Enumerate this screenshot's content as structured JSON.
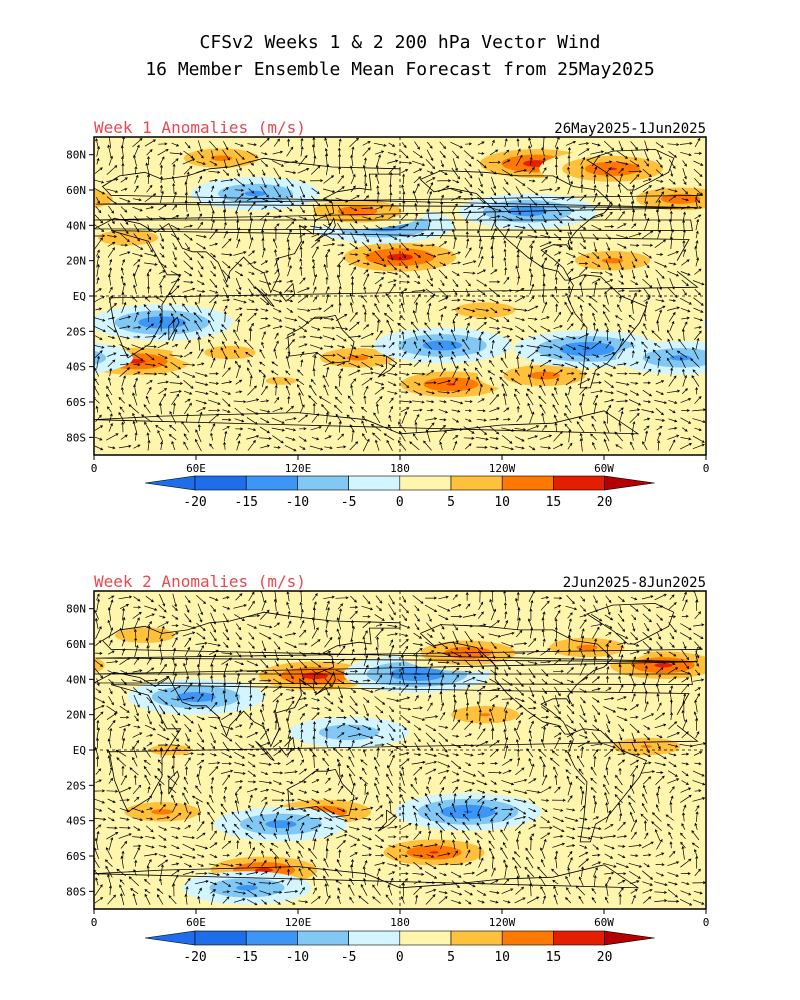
{
  "title": {
    "line1": "CFSv2 Weeks 1 & 2 200 hPa Vector Wind",
    "line2": "16 Member Ensemble Mean Forecast from 25May2025"
  },
  "panels": [
    {
      "label": "Week 1 Anomalies (m/s)",
      "date_range": "26May2025-1Jun2025",
      "lat_labels": [
        "80N",
        "60N",
        "40N",
        "20N",
        "EQ",
        "20S",
        "40S",
        "60S",
        "80S"
      ],
      "lon_labels": [
        "0",
        "60E",
        "120E",
        "180",
        "120W",
        "60W",
        "0"
      ],
      "anomaly_blobs": [
        {
          "lon": 25,
          "lat": -37,
          "value": 17
        },
        {
          "lon": 40,
          "lat": -15,
          "value": -15
        },
        {
          "lon": 80,
          "lat": -32,
          "value": 9
        },
        {
          "lon": 110,
          "lat": -48,
          "value": 7
        },
        {
          "lon": 155,
          "lat": -35,
          "value": 12
        },
        {
          "lon": 210,
          "lat": -50,
          "value": 16
        },
        {
          "lon": 265,
          "lat": -45,
          "value": 13
        },
        {
          "lon": 205,
          "lat": -28,
          "value": -14
        },
        {
          "lon": 290,
          "lat": -30,
          "value": -16
        },
        {
          "lon": 345,
          "lat": -35,
          "value": -12
        },
        {
          "lon": 180,
          "lat": 22,
          "value": 18
        },
        {
          "lon": 170,
          "lat": 40,
          "value": -15
        },
        {
          "lon": 155,
          "lat": 48,
          "value": 14
        },
        {
          "lon": 75,
          "lat": 78,
          "value": 12
        },
        {
          "lon": 260,
          "lat": 75,
          "value": 18
        },
        {
          "lon": 305,
          "lat": 72,
          "value": 16
        },
        {
          "lon": 255,
          "lat": 48,
          "value": -14
        },
        {
          "lon": 345,
          "lat": 55,
          "value": 14
        },
        {
          "lon": 305,
          "lat": 20,
          "value": 12
        },
        {
          "lon": 230,
          "lat": -8,
          "value": 10
        },
        {
          "lon": 95,
          "lat": 58,
          "value": -12
        },
        {
          "lon": 20,
          "lat": 33,
          "value": 10
        }
      ]
    },
    {
      "label": "Week 2 Anomalies (m/s)",
      "date_range": "2Jun2025-8Jun2025",
      "lat_labels": [
        "80N",
        "60N",
        "40N",
        "20N",
        "EQ",
        "20S",
        "40S",
        "60S",
        "80S"
      ],
      "lon_labels": [
        "0",
        "60E",
        "120E",
        "180",
        "120W",
        "60W",
        "0"
      ],
      "anomaly_blobs": [
        {
          "lon": 130,
          "lat": 42,
          "value": 18
        },
        {
          "lon": 60,
          "lat": 30,
          "value": -14
        },
        {
          "lon": 190,
          "lat": 43,
          "value": -16
        },
        {
          "lon": 220,
          "lat": 55,
          "value": 15
        },
        {
          "lon": 335,
          "lat": 48,
          "value": 17
        },
        {
          "lon": 290,
          "lat": 58,
          "value": 12
        },
        {
          "lon": 30,
          "lat": 65,
          "value": 10
        },
        {
          "lon": 100,
          "lat": -68,
          "value": 17
        },
        {
          "lon": 200,
          "lat": -58,
          "value": 16
        },
        {
          "lon": 135,
          "lat": -35,
          "value": 15
        },
        {
          "lon": 40,
          "lat": -35,
          "value": 12
        },
        {
          "lon": 220,
          "lat": -35,
          "value": -16
        },
        {
          "lon": 110,
          "lat": -42,
          "value": -13
        },
        {
          "lon": 90,
          "lat": -78,
          "value": -12
        },
        {
          "lon": 325,
          "lat": 2,
          "value": 11
        },
        {
          "lon": 45,
          "lat": 0,
          "value": 8
        },
        {
          "lon": 230,
          "lat": 20,
          "value": 11
        },
        {
          "lon": 150,
          "lat": 10,
          "value": -10
        }
      ]
    }
  ],
  "colorbar": {
    "tick_labels": [
      "-20",
      "-15",
      "-10",
      "-5",
      "0",
      "5",
      "10",
      "15",
      "20"
    ],
    "colors": [
      "#1e6eeb",
      "#3c96f5",
      "#82c8f5",
      "#d2f5ff",
      "#fff5ad",
      "#ffc03c",
      "#ff7800",
      "#e61e00",
      "#aa0000"
    ],
    "low_color": "#1e6eeb",
    "high_color": "#b40000"
  },
  "colors": {
    "title": "#000000",
    "panel_label": "#e8494f",
    "date_range": "#000000",
    "coast": "#000000",
    "vector": "#000000"
  }
}
